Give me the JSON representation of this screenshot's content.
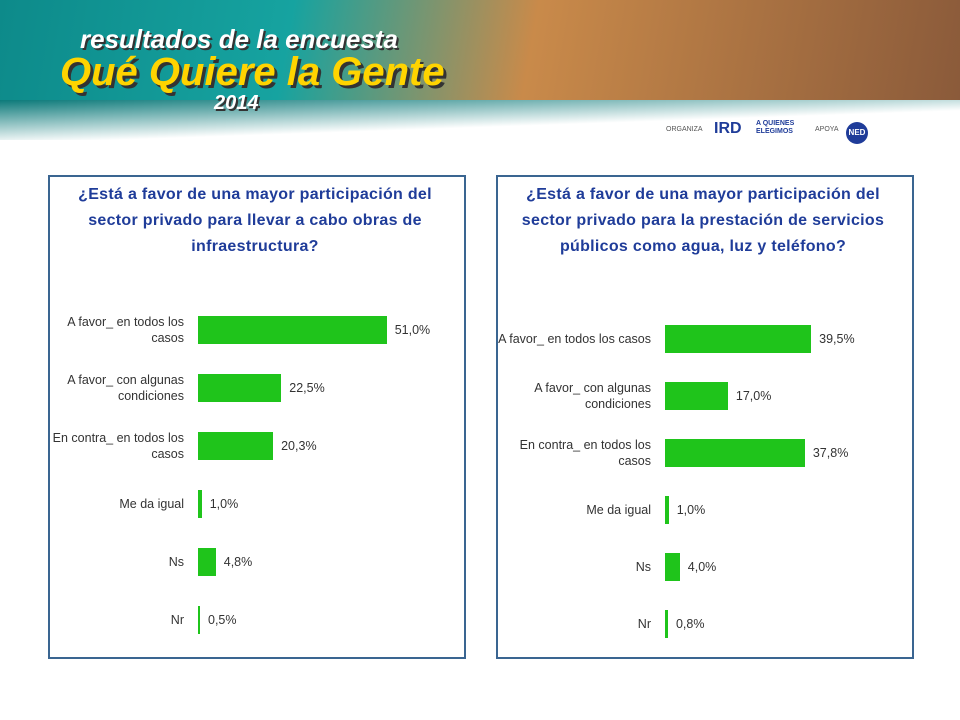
{
  "header": {
    "subtitle": "resultados de la encuesta",
    "title": "Qué Quiere la Gente",
    "year": "2014",
    "organiza": "ORGANIZA",
    "org_logo1": "IRD",
    "org_logo2": "A QUIENES ELEGIMOS",
    "apoya": "APOYA",
    "support_logo": "NED"
  },
  "chart_data": [
    {
      "type": "bar",
      "orientation": "horizontal",
      "title": "¿Está a favor de una mayor participación del sector privado para llevar a cabo obras de infraestructura?",
      "categories": [
        "A favor_ en todos los casos",
        "A favor_ con algunas condiciones",
        "En contra_ en todos los casos",
        "Me da igual",
        "Ns",
        "Nr"
      ],
      "values": [
        51.0,
        22.5,
        20.3,
        1.0,
        4.8,
        0.5
      ],
      "value_labels": [
        "51,0%",
        "22,5%",
        "20,3%",
        "1,0%",
        "4,8%",
        "0,5%"
      ],
      "color": "#1fc41b"
    },
    {
      "type": "bar",
      "orientation": "horizontal",
      "title": "¿Está a favor de una mayor participación del sector privado para la prestación de servicios públicos como agua, luz y teléfono?",
      "categories": [
        "A favor_ en todos los casos",
        "A favor_ con algunas condiciones",
        "En contra_ en todos los casos",
        "Me da igual",
        "Ns",
        "Nr"
      ],
      "values": [
        39.5,
        17.0,
        37.8,
        1.0,
        4.0,
        0.8
      ],
      "value_labels": [
        "39,5%",
        "17,0%",
        "37,8%",
        "1,0%",
        "4,0%",
        "0,8%"
      ],
      "color": "#1fc41b"
    }
  ]
}
